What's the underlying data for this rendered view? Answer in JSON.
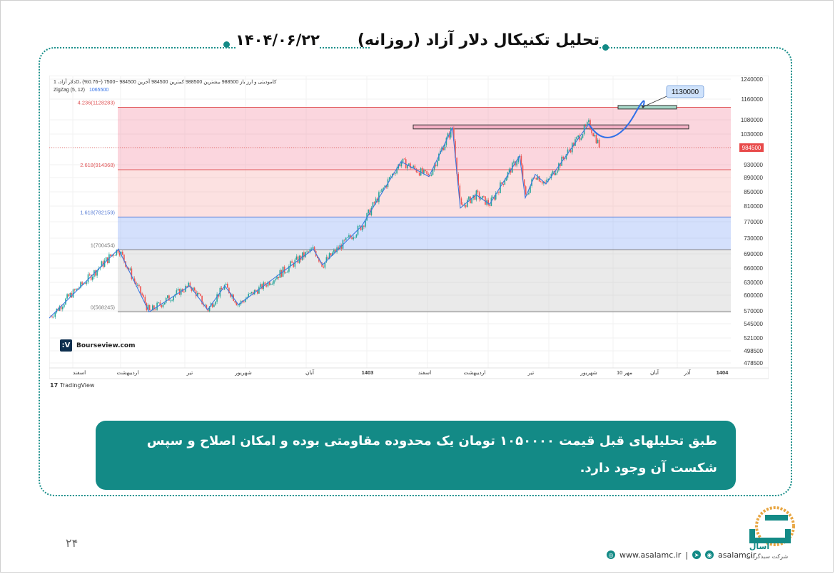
{
  "header": {
    "title": "تحلیل تکنیکال دلار آزاد (روزانه)",
    "date": "۱۴۰۴/۰۶/۲۲"
  },
  "chart_data": {
    "type": "candlestick",
    "legend_line1": "دلار آزاد، 1D، کامودیتی و ارز  باز 988500  بیشترین 988500  کمترین 984500  آخرین 984500  −7500 (−0.76%)",
    "indicator_label": "ZigZag (5, 12)",
    "indicator_value": "1065500",
    "y_axis": {
      "min": 462000,
      "max": 1240000,
      "ticks": [
        "1240000",
        "1160000",
        "1080000",
        "1030000",
        "984500",
        "930000",
        "890000",
        "850000",
        "810000",
        "770000",
        "730000",
        "690000",
        "660000",
        "630000",
        "600000",
        "570000",
        "545000",
        "521000",
        "498500",
        "478500"
      ]
    },
    "x_axis_labels": [
      "اسفند",
      "اردیبهشت",
      "تیر",
      "شهریور",
      "آبان",
      "1403",
      "اسفند",
      "اردیبهشت",
      "تیر",
      "شهریور",
      "10 مهر",
      "آبان",
      "آذر",
      "1404"
    ],
    "fib_levels": [
      {
        "label": "4.236(1128283)",
        "value": 1128283,
        "color": "#e0585a"
      },
      {
        "label": "2.618(914368)",
        "value": 914368,
        "color": "#e0585a"
      },
      {
        "label": "1.618(782159)",
        "value": 782159,
        "color": "#5b7fd6"
      },
      {
        "label": "1(700454)",
        "value": 700454,
        "color": "#7a7a7a"
      },
      {
        "label": "0(568245)",
        "value": 568245,
        "color": "#7a7a7a"
      }
    ],
    "last_price": {
      "value": 984500,
      "label": "984500",
      "color": "#e84a4a"
    },
    "target": {
      "value": 1130000,
      "label": "1130000"
    },
    "resistance_zone": [
      1048000,
      1062000
    ],
    "zigzag": [
      [
        0,
        556000
      ],
      [
        97,
        702000
      ],
      [
        140,
        568000
      ],
      [
        197,
        622000
      ],
      [
        222,
        572000
      ],
      [
        246,
        622000
      ],
      [
        265,
        582000
      ],
      [
        370,
        702000
      ],
      [
        383,
        667000
      ],
      [
        438,
        760000
      ],
      [
        493,
        940000
      ],
      [
        532,
        893000
      ],
      [
        565,
        1052000
      ],
      [
        576,
        805000
      ],
      [
        598,
        842000
      ],
      [
        617,
        815000
      ],
      [
        659,
        958000
      ],
      [
        667,
        833000
      ],
      [
        681,
        900000
      ],
      [
        696,
        872000
      ],
      [
        756,
        1065500
      ]
    ],
    "projection": [
      [
        756,
        1065500
      ],
      [
        775,
        990000
      ],
      [
        800,
        1010000
      ],
      [
        820,
        1100000
      ],
      [
        832,
        1130000
      ]
    ],
    "candles": []
  },
  "watermark": {
    "brand": "Bourseview.com",
    "tv": "TradingView"
  },
  "note": {
    "text": "طبق تحلیلهای قبل قیمت ۱۰۵۰۰۰۰ تومان یک محدوده مقاومتی بوده و امکان اصلاح و سپس شکست آن وجود دارد."
  },
  "footer": {
    "website": "www.asalamc.ir",
    "social": "asalamcir",
    "separator": "|"
  },
  "logo": {
    "name": "آسال",
    "subtitle": "شرکت سبدگردان"
  },
  "page_number": "۲۴",
  "colors": {
    "accent": "#138a86",
    "up_candle": "#26a69a",
    "down_candle": "#ef5350",
    "zigzag": "#3a78e0"
  }
}
